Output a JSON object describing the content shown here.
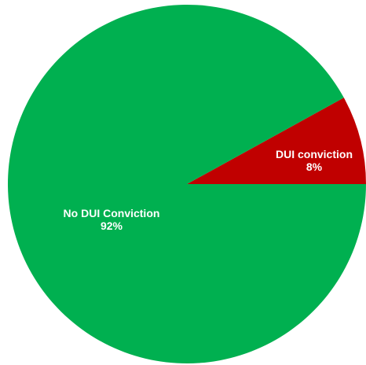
{
  "chart_data": {
    "type": "pie",
    "title": "",
    "categories": [
      "DUI conviction",
      "No DUI Conviction"
    ],
    "values": [
      8,
      92
    ],
    "value_labels": [
      "8%",
      "92%"
    ],
    "colors": [
      "#c00000",
      "#00b050"
    ],
    "start_angle_deg": 0,
    "direction": "counterclockwise",
    "legend": "none"
  }
}
